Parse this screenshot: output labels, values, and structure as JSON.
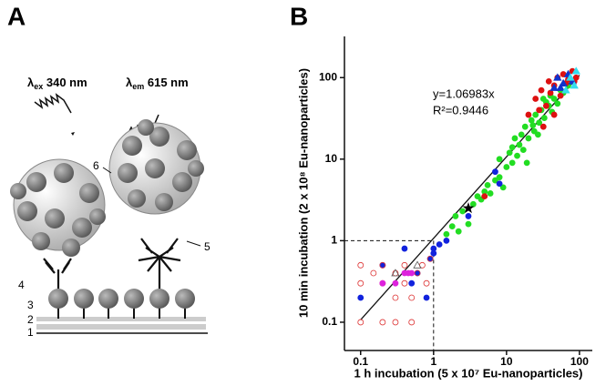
{
  "panel_a": {
    "label": "A",
    "excitation": {
      "symbol": "λ",
      "sub": "ex",
      "text": " 340 nm"
    },
    "emission": {
      "symbol": "λ",
      "sub": "em",
      "text": " 615 nm"
    },
    "parts": [
      "1",
      "2",
      "3",
      "4",
      "5",
      "6"
    ]
  },
  "panel_b": {
    "label": "B"
  },
  "chart_data": {
    "type": "scatter",
    "x_label": "1 h incubation (5 x 10⁷ Eu-nanoparticles)",
    "y_label": "10 min incubation (2 x 10⁸ Eu-nanoparticles)",
    "xlim": [
      0.06,
      150
    ],
    "ylim": [
      0.045,
      320
    ],
    "log_scale": true,
    "xticks": [
      0.1,
      1,
      10,
      100
    ],
    "yticks": [
      0.1,
      1,
      10,
      100
    ],
    "fit": {
      "label": "y=1.06983x",
      "slope": 1.06983,
      "r2_label": "R²=0.9446"
    },
    "dashed_x": 1,
    "dashed_y": 1,
    "series": [
      {
        "color": "#22dd22",
        "marker": "circle",
        "filled": true,
        "x": [
          1.5,
          1.8,
          2,
          2.2,
          2.5,
          3,
          3.5,
          4,
          4.5,
          5,
          5.5,
          6,
          7,
          8,
          9,
          10,
          11,
          12,
          13,
          14,
          15,
          16,
          17,
          18,
          20,
          22,
          24,
          25,
          28,
          30,
          33,
          35,
          38,
          40,
          45,
          50,
          55,
          60,
          70,
          8,
          12,
          19,
          23,
          27,
          32,
          42
        ],
        "y": [
          1.2,
          1.5,
          2,
          1.3,
          2.3,
          1.6,
          2.8,
          3.5,
          3.2,
          4,
          4.8,
          3.8,
          5.5,
          6,
          4.5,
          8,
          12,
          9,
          18,
          11,
          15,
          20,
          13,
          25,
          18,
          30,
          22,
          35,
          28,
          40,
          32,
          50,
          45,
          60,
          55,
          48,
          70,
          65,
          80,
          10,
          14,
          9,
          26,
          20,
          55,
          38
        ]
      },
      {
        "color": "#dd1111",
        "marker": "circle",
        "filled": true,
        "x": [
          5,
          20,
          25,
          28,
          30,
          35,
          38,
          40,
          45,
          50,
          55,
          60,
          65,
          70,
          80,
          85,
          90,
          45,
          32
        ],
        "y": [
          3.5,
          35,
          55,
          40,
          70,
          45,
          90,
          65,
          80,
          100,
          60,
          110,
          85,
          95,
          120,
          90,
          100,
          35,
          25
        ]
      },
      {
        "color": "#1122dd",
        "marker": "circle",
        "filled": true,
        "x": [
          0.1,
          0.2,
          0.4,
          0.8,
          0.9,
          1,
          1,
          0.5,
          1.2,
          1.5,
          3,
          7,
          8,
          0.6
        ],
        "y": [
          0.2,
          0.5,
          0.8,
          0.2,
          0.6,
          0.7,
          0.8,
          0.3,
          0.9,
          1,
          2,
          7,
          5,
          0.4
        ]
      },
      {
        "color": "#dd3333",
        "marker": "circle",
        "filled": false,
        "x": [
          0.1,
          0.1,
          0.1,
          0.15,
          0.2,
          0.2,
          0.2,
          0.3,
          0.3,
          0.4,
          0.5,
          0.5,
          0.6,
          0.7,
          0.8,
          0.9,
          0.3,
          0.4
        ],
        "y": [
          0.5,
          0.3,
          0.1,
          0.4,
          0.5,
          0.3,
          0.1,
          0.2,
          0.4,
          0.3,
          0.1,
          0.2,
          0.4,
          0.5,
          0.3,
          0.6,
          0.1,
          0.5
        ]
      },
      {
        "color": "#dd22dd",
        "marker": "circle",
        "filled": true,
        "x": [
          0.2,
          0.3,
          0.4,
          0.5,
          0.45
        ],
        "y": [
          0.3,
          0.3,
          0.4,
          0.4,
          0.4
        ]
      },
      {
        "color": "#1133cc",
        "marker": "triangle",
        "filled": true,
        "x": [
          45,
          50,
          60,
          70,
          80,
          55
        ],
        "y": [
          75,
          100,
          85,
          110,
          90,
          75
        ]
      },
      {
        "color": "#33ddee",
        "marker": "triangle",
        "filled": true,
        "x": [
          65,
          75,
          90,
          85
        ],
        "y": [
          70,
          100,
          120,
          80
        ]
      },
      {
        "color": "#555555",
        "marker": "triangle",
        "filled": false,
        "x": [
          0.3,
          0.6
        ],
        "y": [
          0.4,
          0.5
        ]
      },
      {
        "color": "#000000",
        "marker": "star",
        "filled": true,
        "x": [
          3
        ],
        "y": [
          2.5
        ]
      }
    ]
  }
}
